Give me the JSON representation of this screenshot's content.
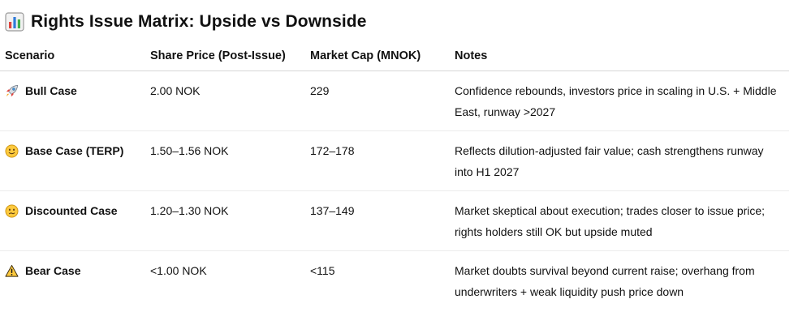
{
  "title": "Rights Issue Matrix: Upside vs Downside",
  "title_icon": "bar-chart-icon",
  "columns": [
    "Scenario",
    "Share Price (Post-Issue)",
    "Market Cap (MNOK)",
    "Notes"
  ],
  "rows": [
    {
      "icon": "rocket-icon",
      "scenario": "Bull Case",
      "price": "2.00 NOK",
      "market_cap": "229",
      "notes": "Confidence rebounds, investors price in scaling in U.S. + Middle East, runway >2027"
    },
    {
      "icon": "slightly-smiling-face-icon",
      "scenario": "Base Case (TERP)",
      "price": "1.50–1.56 NOK",
      "market_cap": "172–178",
      "notes": "Reflects dilution-adjusted fair value; cash strengthens runway into H1 2027"
    },
    {
      "icon": "confused-face-icon",
      "scenario": "Discounted Case",
      "price": "1.20–1.30 NOK",
      "market_cap": "137–149",
      "notes": "Market skeptical about execution; trades closer to issue price; rights holders still OK but upside muted"
    },
    {
      "icon": "warning-icon",
      "scenario": "Bear Case",
      "price": "<1.00 NOK",
      "market_cap": "<115",
      "notes": "Market doubts survival beyond current raise; overhang from underwriters + weak liquidity push price down"
    }
  ]
}
